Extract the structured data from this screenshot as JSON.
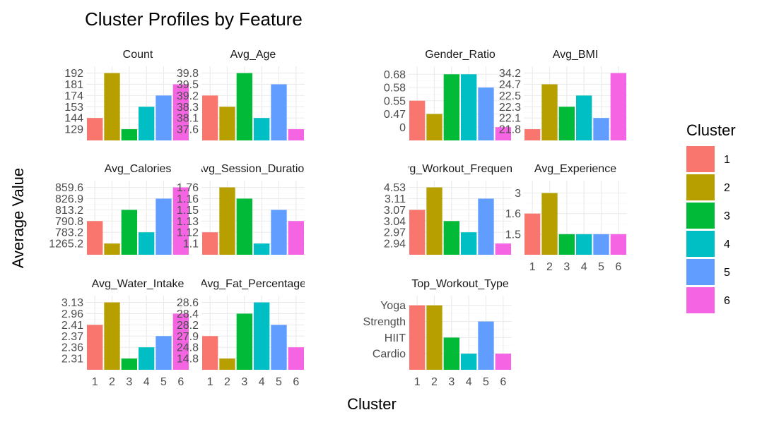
{
  "chart_data": {
    "type": "bar",
    "title": "Cluster Profiles by Feature",
    "xlabel": "Cluster",
    "ylabel": "Average Value",
    "legend": {
      "title": "Cluster",
      "position": "right",
      "entries": [
        "1",
        "2",
        "3",
        "4",
        "5",
        "6"
      ]
    },
    "colors": [
      "#F8766D",
      "#B79F00",
      "#00BA38",
      "#00BFC4",
      "#619CFF",
      "#F564E3"
    ],
    "categories": [
      "1",
      "2",
      "3",
      "4",
      "5",
      "6"
    ],
    "grid": true,
    "scales": "free_y",
    "panels": [
      {
        "strip": "Count",
        "y_ticks": [
          "129",
          "144",
          "153",
          "174",
          "181",
          "192"
        ],
        "values": [
          "144",
          "192",
          "129",
          "153",
          "174",
          "181"
        ]
      },
      {
        "strip": "Avg_Age",
        "y_ticks": [
          "37.6",
          "38.1",
          "38.3",
          "39.2",
          "39.5",
          "39.8"
        ],
        "values": [
          "39.2",
          "38.3",
          "39.8",
          "38.1",
          "39.5",
          "37.6"
        ]
      },
      {
        "strip": "Gender_Ratio",
        "y_ticks": [
          "0",
          "0.47",
          "0.55",
          "0.58",
          "0.68"
        ],
        "values": [
          "0.55",
          "0.47",
          "0.68",
          "0.68",
          "0.58",
          "0"
        ]
      },
      {
        "strip": "Avg_BMI",
        "y_ticks": [
          "21.8",
          "22.1",
          "22.3",
          "22.5",
          "24.7",
          "34.2"
        ],
        "values": [
          "21.8",
          "24.7",
          "22.3",
          "22.5",
          "22.1",
          "34.2"
        ]
      },
      {
        "strip": "Avg_Calories",
        "y_ticks": [
          "1265.2",
          "783.2",
          "790.8",
          "813.2",
          "826.9",
          "859.6"
        ],
        "values": [
          "790.8",
          "1265.2",
          "813.2",
          "783.2",
          "826.9",
          "859.6"
        ]
      },
      {
        "strip": "Avg_Session_Duration",
        "y_ticks": [
          "1.1",
          "1.12",
          "1.13",
          "1.15",
          "1.16",
          "1.76"
        ],
        "values": [
          "1.12",
          "1.76",
          "1.16",
          "1.1",
          "1.15",
          "1.13"
        ]
      },
      {
        "strip": "Avg_Workout_Frequency",
        "y_ticks": [
          "2.94",
          "2.97",
          "3.04",
          "3.07",
          "3.11",
          "4.53"
        ],
        "values": [
          "3.07",
          "4.53",
          "3.04",
          "2.97",
          "3.11",
          "2.94"
        ]
      },
      {
        "strip": "Avg_Experience",
        "y_ticks": [
          "1.5",
          "1.6",
          "3"
        ],
        "values": [
          "1.6",
          "3",
          "1.5",
          "1.5",
          "1.5",
          "1.5"
        ]
      },
      {
        "strip": "Avg_Water_Intake",
        "y_ticks": [
          "2.31",
          "2.36",
          "2.37",
          "2.41",
          "2.96",
          "3.13"
        ],
        "values": [
          "2.41",
          "3.13",
          "2.31",
          "2.36",
          "2.37",
          "2.96"
        ]
      },
      {
        "strip": "Avg_Fat_Percentage",
        "y_ticks": [
          "14.8",
          "24.8",
          "27.9",
          "28.2",
          "28.4",
          "28.6"
        ],
        "values": [
          "27.9",
          "14.8",
          "28.4",
          "28.6",
          "28.2",
          "24.8"
        ]
      },
      {
        "strip": "Top_Workout_Type",
        "y_ticks": [
          "Cardio",
          "HIIT",
          "Strength",
          "Yoga"
        ],
        "values": [
          "Yoga",
          "Yoga",
          "HIIT",
          "Cardio",
          "Strength",
          "Cardio"
        ]
      }
    ]
  }
}
